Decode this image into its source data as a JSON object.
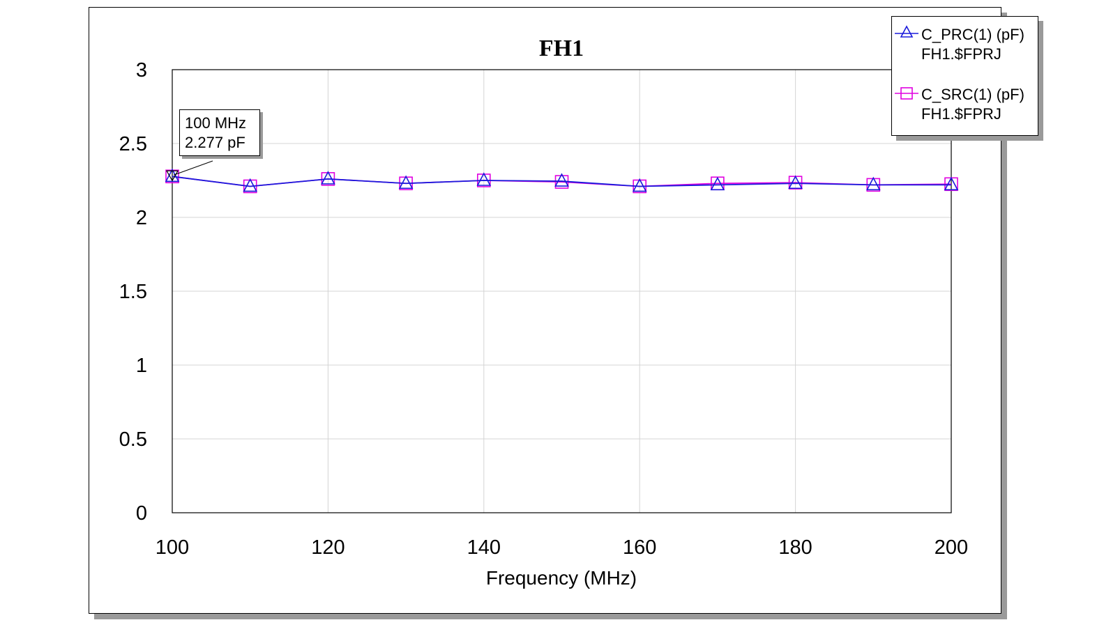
{
  "chart_data": {
    "type": "line",
    "title": "FH1",
    "xlabel": "Frequency (MHz)",
    "ylabel": "",
    "xlim": [
      100,
      200
    ],
    "ylim": [
      0,
      3
    ],
    "x_ticks": [
      "100",
      "120",
      "140",
      "160",
      "180",
      "200"
    ],
    "y_ticks": [
      "0",
      "0.5",
      "1",
      "1.5",
      "2",
      "2.5",
      "3"
    ],
    "x": [
      100,
      110,
      120,
      130,
      140,
      150,
      160,
      170,
      180,
      190,
      200
    ],
    "grid": true,
    "legend_position": "top-right",
    "series": [
      {
        "name": "C_PRC(1) (pF)",
        "subname": "FH1.$FPRJ",
        "marker": "triangle",
        "color": "#1a1adb",
        "values": [
          2.277,
          2.21,
          2.26,
          2.23,
          2.25,
          2.245,
          2.21,
          2.22,
          2.23,
          2.22,
          2.22
        ]
      },
      {
        "name": "C_SRC(1) (pF)",
        "subname": "FH1.$FPRJ",
        "marker": "square",
        "color": "#e000e0",
        "values": [
          2.277,
          2.21,
          2.26,
          2.23,
          2.25,
          2.24,
          2.21,
          2.23,
          2.235,
          2.22,
          2.225
        ]
      }
    ],
    "marker_annotation": {
      "line1": "100 MHz",
      "line2": "2.277 pF",
      "x": 100,
      "y": 2.277
    }
  }
}
